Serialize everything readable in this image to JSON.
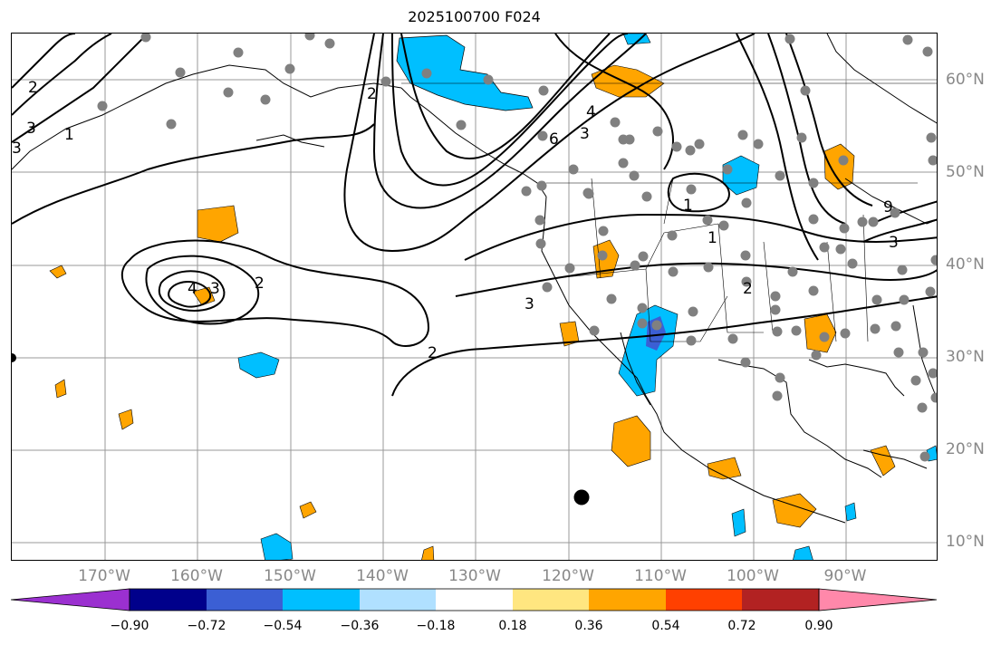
{
  "title": "2025100700 F024",
  "colors": {
    "grid": "#999999",
    "coast": "#000000",
    "contour": "#000000",
    "station": "#808080",
    "marker": "#000000"
  },
  "longitude_labels": [
    "170°W",
    "160°W",
    "150°W",
    "140°W",
    "130°W",
    "120°W",
    "110°W",
    "100°W",
    "90°W"
  ],
  "latitude_labels": [
    "60°N",
    "50°N",
    "40°N",
    "30°N",
    "20°N",
    "10°N"
  ],
  "contour_labels": [
    "2",
    "4",
    "3",
    "2",
    "3",
    "1",
    "4",
    "3",
    "6",
    "2",
    "1",
    "1",
    "3",
    "2",
    "2",
    "3",
    "3",
    "9"
  ],
  "colorbar": {
    "ticks": [
      "−0.90",
      "−0.72",
      "−0.54",
      "−0.36",
      "−0.18",
      "0.18",
      "0.36",
      "0.54",
      "0.72",
      "0.90"
    ],
    "colors": [
      "#9b30d0",
      "#00008b",
      "#3b5fd4",
      "#00bfff",
      "#b0e0ff",
      "#ffffff",
      "#ffe680",
      "#ffa500",
      "#ff4000",
      "#b22222",
      "#ff88aa"
    ]
  }
}
